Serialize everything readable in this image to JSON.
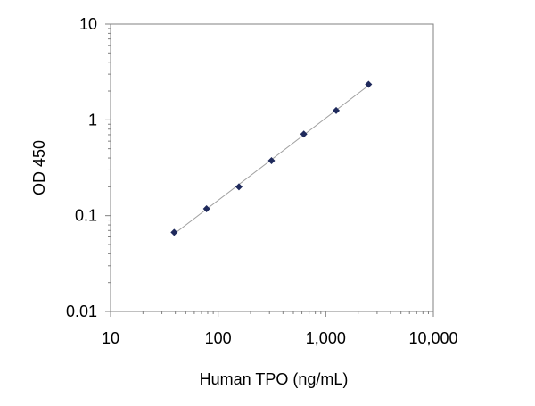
{
  "chart_data": {
    "type": "scatter",
    "title": "",
    "xlabel": "Human TPO  (ng/mL)",
    "ylabel": "OD 450",
    "xscale": "log",
    "yscale": "log",
    "xlim": [
      10,
      10000
    ],
    "ylim": [
      0.01,
      10
    ],
    "x_ticks": [
      {
        "value": 10,
        "label": "10"
      },
      {
        "value": 100,
        "label": "100"
      },
      {
        "value": 1000,
        "label": "1,000"
      },
      {
        "value": 10000,
        "label": "10,000"
      }
    ],
    "y_ticks": [
      {
        "value": 0.01,
        "label": "0.01"
      },
      {
        "value": 0.1,
        "label": "0.1"
      },
      {
        "value": 1,
        "label": "1"
      },
      {
        "value": 10,
        "label": "10"
      }
    ],
    "grid": false,
    "legend": false,
    "marker": "diamond",
    "trendline": true,
    "colors": {
      "marker": "#1f2a5c",
      "trendline": "#a0a0a0",
      "axis": "#808080"
    },
    "series": [
      {
        "x": [
          39,
          78,
          156,
          313,
          625,
          1250,
          2500
        ],
        "y": [
          0.067,
          0.118,
          0.2,
          0.375,
          0.71,
          1.25,
          2.35
        ]
      }
    ]
  }
}
